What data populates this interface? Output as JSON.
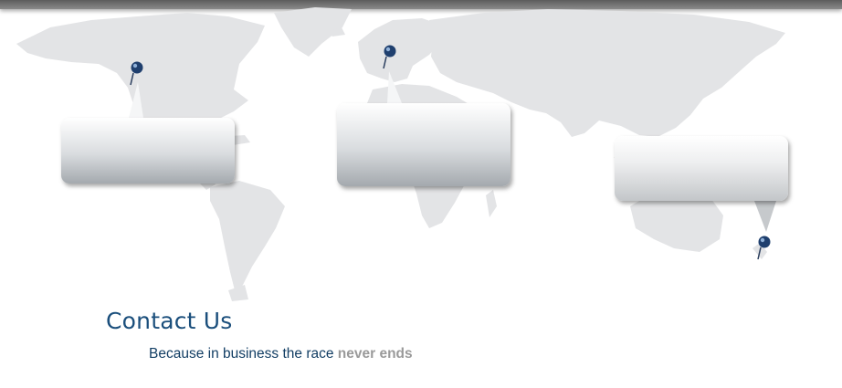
{
  "colors": {
    "title": "#1b4f7c",
    "tagline": "#123e64",
    "tagline_highlight": "#9a9a9a",
    "map_land": "#e3e4e6",
    "pin": "#1f3f6e"
  },
  "icons": {
    "americas_pin": "map-pin-icon",
    "europe_pin": "map-pin-icon",
    "oceania_pin": "map-pin-icon"
  },
  "heading": {
    "title": "Contact Us",
    "tagline_prefix": "Because in business the race",
    "tagline_highlight": "never ends"
  }
}
